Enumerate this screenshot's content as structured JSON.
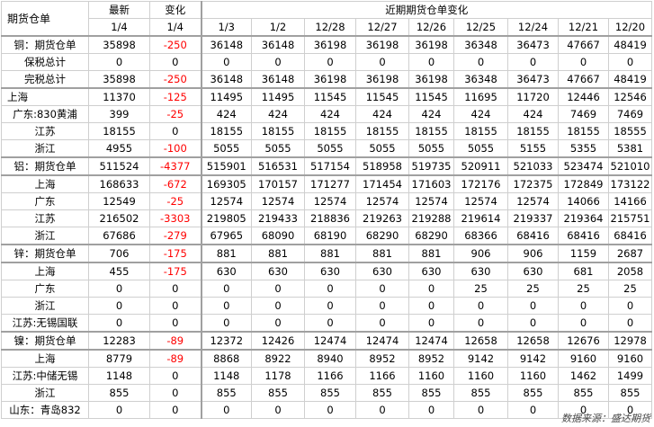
{
  "header": {
    "corner_label": "期货仓单",
    "latest_label": "最新",
    "change_label": "变化",
    "recent_label": "近期期货仓单变化",
    "latest_date": "1/4",
    "change_date": "1/4",
    "dates": [
      "1/3",
      "1/2",
      "12/28",
      "12/27",
      "12/26",
      "12/25",
      "12/24",
      "12/21",
      "12/20"
    ]
  },
  "rows": [
    {
      "label": "铜：期货仓单",
      "latest": "35898",
      "change": "-250",
      "values": [
        "36148",
        "36148",
        "36198",
        "36198",
        "36198",
        "36348",
        "36473",
        "47667",
        "48419"
      ],
      "section_start": true,
      "indent": false
    },
    {
      "label": "保税总计",
      "latest": "0",
      "change": "0",
      "values": [
        "0",
        "0",
        "0",
        "0",
        "0",
        "0",
        "0",
        "0",
        "0"
      ],
      "section_start": false,
      "indent": false
    },
    {
      "label": "完税总计",
      "latest": "35898",
      "change": "-250",
      "values": [
        "36148",
        "36148",
        "36198",
        "36198",
        "36198",
        "36348",
        "36473",
        "47667",
        "48419"
      ],
      "section_start": false,
      "indent": false
    },
    {
      "label": "上海",
      "latest": "11370",
      "change": "-125",
      "values": [
        "11495",
        "11495",
        "11545",
        "11545",
        "11545",
        "11695",
        "11720",
        "12446",
        "12546"
      ],
      "section_start": true,
      "indent": true
    },
    {
      "label": "广东:830黄浦",
      "latest": "399",
      "change": "-25",
      "values": [
        "424",
        "424",
        "424",
        "424",
        "424",
        "424",
        "424",
        "7469",
        "7469"
      ],
      "section_start": false,
      "indent": false
    },
    {
      "label": "江苏",
      "latest": "18155",
      "change": "0",
      "values": [
        "18155",
        "18155",
        "18155",
        "18155",
        "18155",
        "18155",
        "18155",
        "18155",
        "18555"
      ],
      "section_start": false,
      "indent": false
    },
    {
      "label": "浙江",
      "latest": "4955",
      "change": "-100",
      "values": [
        "5055",
        "5055",
        "5055",
        "5055",
        "5055",
        "5055",
        "5155",
        "5355",
        "5381"
      ],
      "section_start": false,
      "indent": false
    },
    {
      "label": "铝：期货仓单",
      "latest": "511524",
      "change": "-4377",
      "values": [
        "515901",
        "516531",
        "517154",
        "518958",
        "519735",
        "520911",
        "521033",
        "523474",
        "521010"
      ],
      "section_start": true,
      "indent": false
    },
    {
      "label": "上海",
      "latest": "168633",
      "change": "-672",
      "values": [
        "169305",
        "170157",
        "171277",
        "171454",
        "171603",
        "172176",
        "172375",
        "172849",
        "173122"
      ],
      "section_start": true,
      "indent": false
    },
    {
      "label": "广东",
      "latest": "12549",
      "change": "-25",
      "values": [
        "12574",
        "12574",
        "12574",
        "12574",
        "12574",
        "12574",
        "12574",
        "14066",
        "14166"
      ],
      "section_start": false,
      "indent": false
    },
    {
      "label": "江苏",
      "latest": "216502",
      "change": "-3303",
      "values": [
        "219805",
        "219433",
        "218836",
        "219263",
        "219288",
        "219614",
        "219337",
        "219364",
        "215751"
      ],
      "section_start": false,
      "indent": false
    },
    {
      "label": "浙江",
      "latest": "67686",
      "change": "-279",
      "values": [
        "67965",
        "68090",
        "68190",
        "68290",
        "68290",
        "68366",
        "68416",
        "68416",
        "68416"
      ],
      "section_start": false,
      "indent": false
    },
    {
      "label": "锌：期货仓单",
      "latest": "706",
      "change": "-175",
      "values": [
        "881",
        "881",
        "881",
        "881",
        "881",
        "906",
        "906",
        "1159",
        "2687"
      ],
      "section_start": true,
      "indent": false
    },
    {
      "label": "上海",
      "latest": "455",
      "change": "-175",
      "values": [
        "630",
        "630",
        "630",
        "630",
        "630",
        "630",
        "630",
        "681",
        "2058"
      ],
      "section_start": true,
      "indent": false
    },
    {
      "label": "广东",
      "latest": "0",
      "change": "0",
      "values": [
        "0",
        "0",
        "0",
        "0",
        "0",
        "25",
        "25",
        "25",
        "25"
      ],
      "section_start": false,
      "indent": false
    },
    {
      "label": "浙江",
      "latest": "0",
      "change": "0",
      "values": [
        "0",
        "0",
        "0",
        "0",
        "0",
        "0",
        "0",
        "0",
        "0"
      ],
      "section_start": false,
      "indent": false
    },
    {
      "label": "江苏:无锡国联",
      "latest": "0",
      "change": "0",
      "values": [
        "0",
        "0",
        "0",
        "0",
        "0",
        "0",
        "0",
        "0",
        "0"
      ],
      "section_start": false,
      "indent": false
    },
    {
      "label": "镍：期货仓单",
      "latest": "12283",
      "change": "-89",
      "values": [
        "12372",
        "12426",
        "12474",
        "12474",
        "12474",
        "12658",
        "12658",
        "12676",
        "12978"
      ],
      "section_start": true,
      "indent": false
    },
    {
      "label": "上海",
      "latest": "8779",
      "change": "-89",
      "values": [
        "8868",
        "8922",
        "8940",
        "8952",
        "8952",
        "9142",
        "9142",
        "9160",
        "9160"
      ],
      "section_start": true,
      "indent": false
    },
    {
      "label": "江苏:中储无锡",
      "latest": "1148",
      "change": "0",
      "values": [
        "1148",
        "1178",
        "1166",
        "1166",
        "1160",
        "1160",
        "1160",
        "1462",
        "1499"
      ],
      "section_start": false,
      "indent": false
    },
    {
      "label": "浙江",
      "latest": "855",
      "change": "0",
      "values": [
        "855",
        "855",
        "855",
        "855",
        "855",
        "855",
        "855",
        "855",
        "855"
      ],
      "section_start": false,
      "indent": false
    },
    {
      "label": "山东：青岛832",
      "latest": "0",
      "change": "0",
      "values": [
        "0",
        "0",
        "0",
        "0",
        "0",
        "0",
        "0",
        "0",
        "0"
      ],
      "section_start": false,
      "indent": false
    }
  ],
  "footer": {
    "source": "数据来源：盛达期货"
  },
  "colors": {
    "negative": "#ff0000",
    "grid": "#cfcfcf",
    "section_rule": "#a0a0a0"
  }
}
